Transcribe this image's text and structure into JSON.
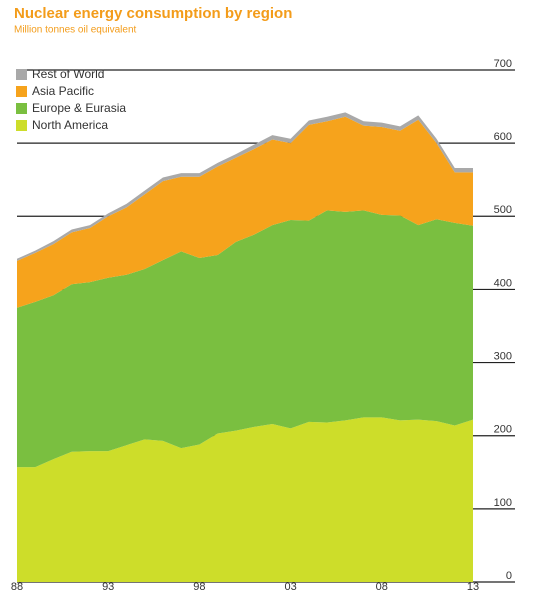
{
  "chart_data": {
    "type": "stacked-area",
    "title": "Nuclear energy consumption by region",
    "subtitle": "Million tonnes oil equivalent",
    "categories": [
      "88",
      null,
      null,
      null,
      null,
      "93",
      null,
      null,
      null,
      null,
      "98",
      null,
      null,
      null,
      null,
      "03",
      null,
      null,
      null,
      null,
      "08",
      null,
      null,
      null,
      null,
      "13"
    ],
    "series": [
      {
        "name": "North America",
        "color": "#cddd2a",
        "values": [
          157,
          157,
          168,
          178,
          179,
          179,
          187,
          195,
          193,
          183,
          188,
          203,
          207,
          212,
          216,
          210,
          219,
          218,
          221,
          225,
          225,
          221,
          222,
          220,
          214,
          222
        ]
      },
      {
        "name": "Europe & Eurasia",
        "color": "#7abf40",
        "values": [
          218,
          226,
          224,
          229,
          231,
          237,
          233,
          233,
          247,
          269,
          255,
          244,
          258,
          263,
          272,
          285,
          275,
          290,
          285,
          283,
          277,
          280,
          266,
          276,
          277,
          265
        ]
      },
      {
        "name": "Asia Pacific",
        "color": "#f6a31c",
        "values": [
          64,
          67,
          70,
          71,
          74,
          84,
          92,
          102,
          108,
          102,
          111,
          121,
          115,
          117,
          117,
          105,
          131,
          122,
          130,
          116,
          120,
          116,
          144,
          104,
          69,
          73
        ]
      },
      {
        "name": "Rest of World",
        "color": "#a9a9a9",
        "values": [
          3,
          3,
          4,
          4,
          4,
          4,
          5,
          5,
          5,
          5,
          5,
          5,
          5,
          6,
          6,
          6,
          6,
          6,
          6,
          6,
          6,
          6,
          6,
          6,
          6,
          6
        ]
      }
    ],
    "ylim": [
      0,
      700
    ],
    "yticks": [
      0,
      100,
      200,
      300,
      400,
      500,
      600,
      700
    ],
    "grid": true
  }
}
